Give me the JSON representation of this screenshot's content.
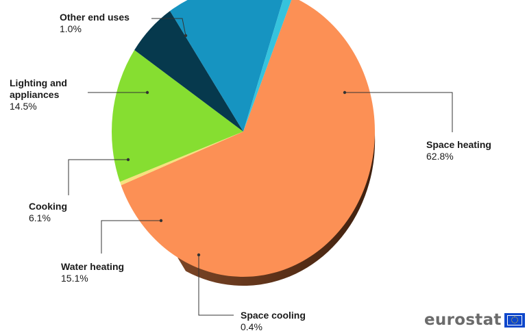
{
  "chart_data": {
    "type": "pie",
    "title": "",
    "slices": [
      {
        "label": "Space heating",
        "value": 62.8,
        "value_label": "62.8%",
        "color": "#FC9055"
      },
      {
        "label": "Space cooling",
        "value": 0.4,
        "value_label": "0.4%",
        "color": "#F6E17E"
      },
      {
        "label": "Water heating",
        "value": 15.1,
        "value_label": "15.1%",
        "color": "#86DE31"
      },
      {
        "label": "Cooking",
        "value": 6.1,
        "value_label": "6.1%",
        "color": "#06394D"
      },
      {
        "label": "Lighting and appliances",
        "value": 14.5,
        "value_label": "14.5%",
        "color": "#1694C1"
      },
      {
        "label": "Other end uses",
        "value": 1.0,
        "value_label": "1.0%",
        "color": "#35C3DD"
      }
    ]
  },
  "labels": {
    "other": {
      "name": "Other end uses",
      "pct": "1.0%"
    },
    "lighting": {
      "name": "Lighting and appliances",
      "pct": "14.5%"
    },
    "space_heating": {
      "name": "Space heating",
      "pct": "62.8%"
    },
    "cooking": {
      "name": "Cooking",
      "pct": "6.1%"
    },
    "water": {
      "name": "Water heating",
      "pct": "15.1%"
    },
    "cooling": {
      "name": "Space cooling",
      "pct": "0.4%"
    }
  },
  "logo": {
    "text": "eurostat"
  }
}
